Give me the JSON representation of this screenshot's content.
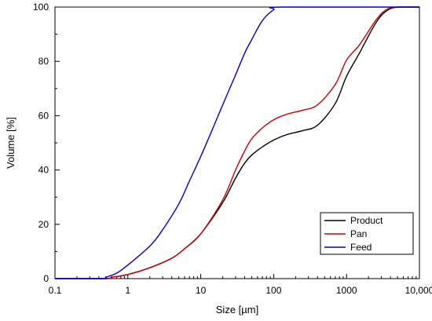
{
  "chart_data": {
    "type": "line",
    "xlabel": "Size [µm]",
    "ylabel": "Volume [%]",
    "xscale": "log",
    "xlim": [
      0.1,
      10000
    ],
    "ylim": [
      0,
      100
    ],
    "grid": false,
    "legend_position": "bottom-right",
    "x_ticks": [
      {
        "value": 0.1,
        "label": "0.1"
      },
      {
        "value": 1,
        "label": "1"
      },
      {
        "value": 10,
        "label": "10"
      },
      {
        "value": 100,
        "label": "100"
      },
      {
        "value": 1000,
        "label": "1000"
      },
      {
        "value": 10000,
        "label": "10,000"
      }
    ],
    "y_ticks": [
      {
        "value": 0,
        "label": "0"
      },
      {
        "value": 20,
        "label": "20"
      },
      {
        "value": 40,
        "label": "40"
      },
      {
        "value": 60,
        "label": "60"
      },
      {
        "value": 80,
        "label": "80"
      },
      {
        "value": 100,
        "label": "100"
      }
    ],
    "series": [
      {
        "name": "Product",
        "color": "#000000",
        "points": [
          [
            0.1,
            0
          ],
          [
            0.5,
            0
          ],
          [
            0.6,
            0.5
          ],
          [
            1,
            1.5
          ],
          [
            2,
            4
          ],
          [
            4,
            7.5
          ],
          [
            6,
            11
          ],
          [
            10,
            16.5
          ],
          [
            20,
            28
          ],
          [
            30,
            37
          ],
          [
            40,
            42.5
          ],
          [
            50,
            45.5
          ],
          [
            70,
            48.5
          ],
          [
            100,
            51
          ],
          [
            150,
            53
          ],
          [
            250,
            54.5
          ],
          [
            400,
            56.5
          ],
          [
            700,
            64.5
          ],
          [
            1000,
            74.5
          ],
          [
            1500,
            83
          ],
          [
            2500,
            94
          ],
          [
            3500,
            98.5
          ],
          [
            5000,
            100
          ],
          [
            10000,
            100
          ]
        ]
      },
      {
        "name": "Pan",
        "color": "#cc0000",
        "points": [
          [
            0.1,
            0
          ],
          [
            0.5,
            0
          ],
          [
            0.6,
            0.5
          ],
          [
            1,
            1.5
          ],
          [
            2,
            4
          ],
          [
            4,
            7.5
          ],
          [
            6,
            11
          ],
          [
            10,
            16.5
          ],
          [
            20,
            29
          ],
          [
            30,
            40
          ],
          [
            40,
            47
          ],
          [
            50,
            51.5
          ],
          [
            70,
            55.5
          ],
          [
            100,
            58.5
          ],
          [
            150,
            60.5
          ],
          [
            250,
            62
          ],
          [
            400,
            64
          ],
          [
            700,
            71.5
          ],
          [
            1000,
            80.5
          ],
          [
            1500,
            86
          ],
          [
            2500,
            95
          ],
          [
            3500,
            99
          ],
          [
            5000,
            100
          ],
          [
            10000,
            100
          ]
        ]
      },
      {
        "name": "Feed",
        "color": "#0000cc",
        "points": [
          [
            0.1,
            0
          ],
          [
            0.45,
            0
          ],
          [
            0.5,
            0.5
          ],
          [
            0.7,
            2
          ],
          [
            1,
            5
          ],
          [
            2,
            12
          ],
          [
            3,
            18
          ],
          [
            5,
            27.5
          ],
          [
            7,
            36
          ],
          [
            10,
            45
          ],
          [
            15,
            56
          ],
          [
            20,
            64
          ],
          [
            30,
            75
          ],
          [
            40,
            83
          ],
          [
            50,
            88
          ],
          [
            70,
            95
          ],
          [
            100,
            99
          ],
          [
            130,
            100
          ],
          [
            10000,
            100
          ]
        ]
      }
    ]
  }
}
